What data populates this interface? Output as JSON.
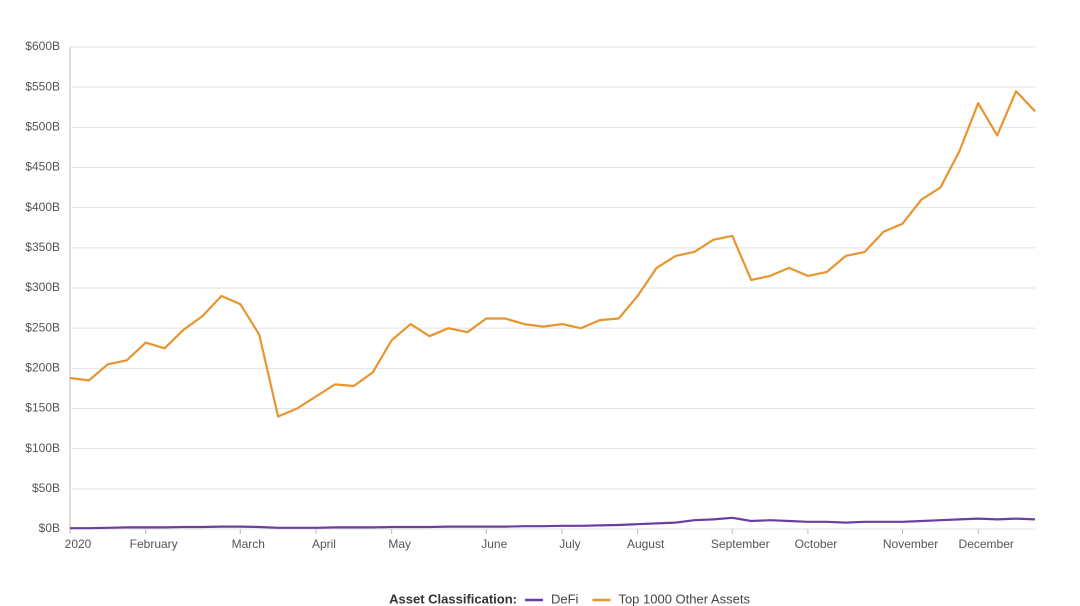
{
  "chart_data": {
    "type": "line",
    "categories": [
      "2020",
      null,
      null,
      null,
      "February",
      null,
      null,
      null,
      null,
      "March",
      null,
      null,
      null,
      "April",
      null,
      null,
      null,
      "May",
      null,
      null,
      null,
      null,
      "June",
      null,
      null,
      null,
      "July",
      null,
      null,
      null,
      "August",
      null,
      null,
      null,
      null,
      "September",
      null,
      null,
      null,
      "October",
      null,
      null,
      null,
      null,
      "November",
      null,
      null,
      null,
      "December",
      null,
      null,
      null
    ],
    "series": [
      {
        "name": "DeFi",
        "color": "#6b3fa0",
        "values": [
          1,
          1,
          1.5,
          2,
          2,
          2,
          2.5,
          2.5,
          3,
          3,
          2.5,
          1.5,
          1.5,
          1.5,
          2,
          2,
          2,
          2.5,
          2.5,
          2.5,
          3,
          3,
          3,
          3,
          3.5,
          3.5,
          4,
          4,
          4.5,
          5,
          6,
          7,
          8,
          11,
          12,
          14,
          10,
          11,
          10,
          9,
          9,
          8,
          9,
          9,
          9,
          10,
          11,
          12,
          13,
          12,
          13,
          12
        ]
      },
      {
        "name": "Top 1000 Other Assets",
        "color": "#e8952f",
        "values": [
          188,
          185,
          205,
          210,
          232,
          225,
          248,
          265,
          290,
          280,
          242,
          140,
          150,
          165,
          180,
          178,
          195,
          235,
          255,
          240,
          250,
          245,
          262,
          262,
          255,
          252,
          255,
          250,
          260,
          262,
          290,
          325,
          340,
          345,
          360,
          365,
          310,
          315,
          325,
          315,
          320,
          340,
          345,
          370,
          380,
          410,
          425,
          470,
          530,
          490,
          545,
          520
        ]
      }
    ],
    "ylim": [
      0,
      600
    ],
    "yticks": [
      {
        "value": 0,
        "label": "$0B"
      },
      {
        "value": 50,
        "label": "$50B"
      },
      {
        "value": 100,
        "label": "$100B"
      },
      {
        "value": 150,
        "label": "$150B"
      },
      {
        "value": 200,
        "label": "$200B"
      },
      {
        "value": 250,
        "label": "$250B"
      },
      {
        "value": 300,
        "label": "$300B"
      },
      {
        "value": 350,
        "label": "$350B"
      },
      {
        "value": 400,
        "label": "$400B"
      },
      {
        "value": 450,
        "label": "$450B"
      },
      {
        "value": 500,
        "label": "$500B"
      },
      {
        "value": 550,
        "label": "$550B"
      },
      {
        "value": 600,
        "label": "$600B"
      }
    ],
    "grid": true,
    "legend_title": "Asset Classification:",
    "legend_position": "bottom"
  }
}
